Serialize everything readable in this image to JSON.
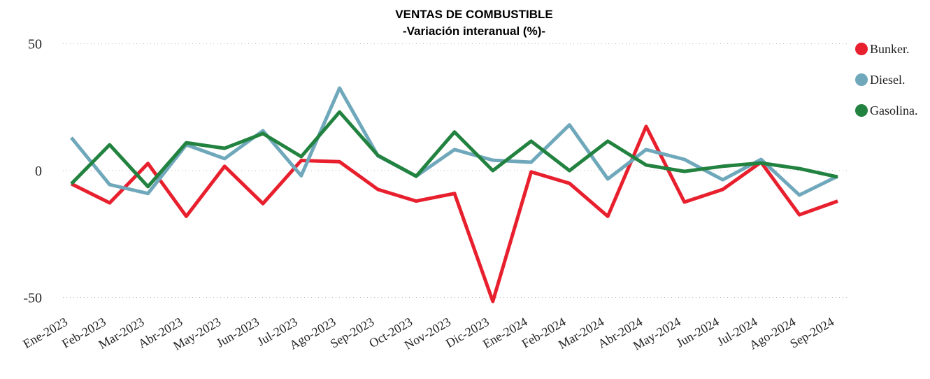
{
  "chart_data": {
    "type": "line",
    "title": "VENTAS DE COMBUSTIBLE",
    "subtitle": "-Variación interanual (%)-",
    "categories": [
      "Ene-2023",
      "Feb-2023",
      "Mar-2023",
      "Abr-2023",
      "May-2023",
      "Jun-2023",
      "Jul-2023",
      "Ago-2023",
      "Sep-2023",
      "Oct-2023",
      "Nov-2023",
      "Dic-2023",
      "Ene-2024",
      "Feb-2024",
      "Mar-2024",
      "Abr-2024",
      "May-2024",
      "Jun-2024",
      "Jul-2024",
      "Ago-2024",
      "Sep-2024"
    ],
    "series": [
      {
        "name": "Bunker.",
        "color": "#e8202e",
        "values": [
          -5.2,
          -12.7,
          2.8,
          -18,
          1.7,
          -13,
          4,
          3.5,
          -7.4,
          -12,
          -9,
          -51.5,
          -0.5,
          -5,
          -18,
          17.4,
          -12.4,
          -7.4,
          3.3,
          -17.4,
          -12
        ]
      },
      {
        "name": "Diesel.",
        "color": "#6fa8bb",
        "values": [
          13,
          -5.5,
          -9,
          10.2,
          4.7,
          15.7,
          -2,
          32.5,
          5.8,
          -2.2,
          8.3,
          4.1,
          3.3,
          18,
          -3.3,
          8.3,
          4.4,
          -3.6,
          4.4,
          -9.6,
          -2.2
        ]
      },
      {
        "name": "Gasolina.",
        "color": "#22823f",
        "values": [
          -5.2,
          10.2,
          -6.3,
          11,
          8.8,
          14.6,
          5.5,
          23.1,
          6,
          -2.2,
          15.2,
          0,
          11.6,
          0,
          11.6,
          2.2,
          -0.3,
          1.7,
          3,
          0.8,
          -2.5
        ]
      }
    ],
    "ylim": [
      -55,
      52
    ],
    "yticks": [
      -50,
      0,
      50
    ],
    "grid": true,
    "legend": "right"
  }
}
